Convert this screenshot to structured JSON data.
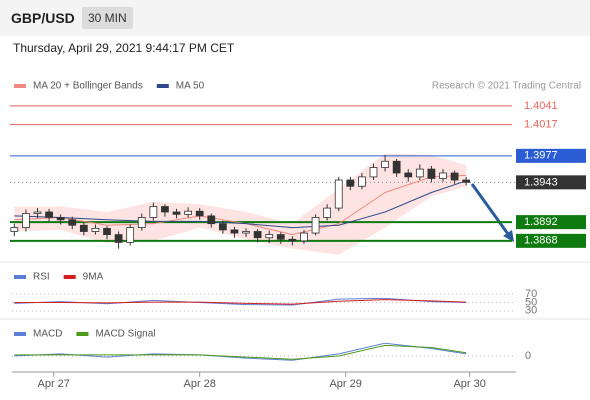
{
  "header": {
    "symbol": "GBP/USD",
    "interval": "30 MIN",
    "timestamp": "Thursday, April 29, 2021 9:44:17 PM CET"
  },
  "chart_data": [
    {
      "type": "candlestick",
      "annotation": "Research © 2021 Trading Central",
      "x": [
        0,
        1,
        2,
        3,
        4,
        5,
        6,
        7,
        8,
        9,
        10,
        11,
        12,
        13,
        14,
        15,
        16,
        17,
        18,
        19,
        20,
        21,
        22,
        23,
        24,
        25,
        26,
        27,
        28,
        29,
        30,
        31,
        32,
        33,
        34,
        35,
        36,
        37,
        38,
        39
      ],
      "open": [
        1.388,
        1.3885,
        1.3903,
        1.3905,
        1.3898,
        1.3895,
        1.3888,
        1.388,
        1.3884,
        1.3876,
        1.3866,
        1.3885,
        1.3898,
        1.3912,
        1.3905,
        1.3902,
        1.3906,
        1.39,
        1.389,
        1.3882,
        1.3878,
        1.388,
        1.3872,
        1.3876,
        1.387,
        1.3868,
        1.3878,
        1.3898,
        1.391,
        1.3946,
        1.3938,
        1.395,
        1.3962,
        1.397,
        1.3955,
        1.395,
        1.396,
        1.3948,
        1.3955,
        1.3946
      ],
      "high": [
        1.389,
        1.3908,
        1.391,
        1.3909,
        1.3902,
        1.3899,
        1.3892,
        1.3889,
        1.3887,
        1.388,
        1.3889,
        1.3903,
        1.3917,
        1.3915,
        1.3909,
        1.3911,
        1.391,
        1.3903,
        1.3894,
        1.3886,
        1.3884,
        1.3883,
        1.3881,
        1.3879,
        1.3874,
        1.3882,
        1.3902,
        1.3915,
        1.395,
        1.395,
        1.3955,
        1.3967,
        1.3978,
        1.3973,
        1.396,
        1.3966,
        1.3964,
        1.396,
        1.3958,
        1.395
      ],
      "low": [
        1.3874,
        1.388,
        1.3897,
        1.3893,
        1.3889,
        1.3883,
        1.3875,
        1.3876,
        1.387,
        1.3858,
        1.3862,
        1.3881,
        1.3894,
        1.3899,
        1.3897,
        1.3898,
        1.3895,
        1.3885,
        1.3877,
        1.3872,
        1.3873,
        1.3866,
        1.3865,
        1.3864,
        1.3862,
        1.3864,
        1.3875,
        1.3894,
        1.3906,
        1.3933,
        1.3934,
        1.3946,
        1.3957,
        1.395,
        1.3944,
        1.3946,
        1.3943,
        1.3944,
        1.3941,
        1.3939
      ],
      "close": [
        1.3885,
        1.3903,
        1.3905,
        1.3898,
        1.3895,
        1.3888,
        1.388,
        1.3884,
        1.3876,
        1.3866,
        1.3885,
        1.3898,
        1.3912,
        1.3905,
        1.3902,
        1.3906,
        1.39,
        1.389,
        1.3882,
        1.3878,
        1.388,
        1.3872,
        1.3876,
        1.387,
        1.3868,
        1.3878,
        1.3898,
        1.391,
        1.3946,
        1.3938,
        1.395,
        1.3962,
        1.397,
        1.3955,
        1.395,
        1.396,
        1.3948,
        1.3955,
        1.3946,
        1.3943
      ],
      "up_color": "#ffffff",
      "down_color": "#333333",
      "series": [
        {
          "name": "MA 20 + Bollinger Bands",
          "color": "#f08a80",
          "band_color": "#fde3e1",
          "x": [
            0,
            4,
            8,
            12,
            16,
            20,
            24,
            28,
            32,
            36,
            39
          ],
          "values": [
            1.3895,
            1.3898,
            1.3888,
            1.389,
            1.39,
            1.389,
            1.3876,
            1.389,
            1.393,
            1.395,
            1.3952
          ],
          "upper": [
            1.3912,
            1.3912,
            1.3905,
            1.3918,
            1.3915,
            1.3905,
            1.389,
            1.3935,
            1.398,
            1.3978,
            1.3965
          ],
          "lower": [
            1.388,
            1.3882,
            1.3865,
            1.3868,
            1.3885,
            1.387,
            1.3858,
            1.385,
            1.3885,
            1.3925,
            1.3938
          ]
        },
        {
          "name": "MA 50",
          "color": "#2e4a8c",
          "x": [
            0,
            4,
            8,
            12,
            16,
            20,
            24,
            28,
            32,
            36,
            39
          ],
          "values": [
            1.39,
            1.3898,
            1.3895,
            1.3893,
            1.3893,
            1.389,
            1.3885,
            1.3888,
            1.3905,
            1.393,
            1.3945
          ]
        }
      ],
      "levels": [
        {
          "value": 1.4041,
          "color": "#e8635a",
          "width": 1,
          "boxed": false,
          "dotted": false
        },
        {
          "value": 1.4017,
          "color": "#e8635a",
          "width": 1,
          "boxed": false,
          "dotted": false
        },
        {
          "value": 1.3977,
          "color": "#2a5cd6",
          "width": 1,
          "boxed": true,
          "dotted": false
        },
        {
          "value": 1.3943,
          "color": "#333333",
          "width": 1,
          "boxed": true,
          "dotted": true
        },
        {
          "value": 1.3892,
          "color": "#0f7a0f",
          "width": 2,
          "boxed": true,
          "dotted": false
        },
        {
          "value": 1.3868,
          "color": "#0f7a0f",
          "width": 2,
          "boxed": true,
          "dotted": false
        }
      ],
      "ylim": [
        1.3846,
        1.4055
      ],
      "xlim": [
        -0.2,
        43.3
      ],
      "xticks": [
        {
          "value": 3.4,
          "label": "Apr 27"
        },
        {
          "value": 16,
          "label": "Apr 28"
        },
        {
          "value": 28.6,
          "label": "Apr 29"
        },
        {
          "value": 39.3,
          "label": "Apr 30"
        }
      ]
    },
    {
      "type": "line",
      "series": [
        {
          "name": "RSI",
          "color": "#5b7fd6",
          "x": [
            0,
            4,
            8,
            12,
            16,
            20,
            24,
            28,
            32,
            36,
            39
          ],
          "values": [
            48,
            52,
            47,
            55,
            50,
            45,
            44,
            58,
            60,
            52,
            50
          ]
        },
        {
          "name": "9MA",
          "color": "#d42020",
          "x": [
            0,
            4,
            8,
            12,
            16,
            20,
            24,
            28,
            32,
            36,
            39
          ],
          "values": [
            50,
            50,
            49,
            51,
            51,
            48,
            46,
            53,
            57,
            54,
            51
          ]
        }
      ],
      "ylim": [
        20,
        80
      ],
      "yticks": [
        30,
        50,
        70
      ]
    },
    {
      "type": "line",
      "series": [
        {
          "name": "MACD",
          "color": "#5b7fd6",
          "x": [
            0,
            4,
            8,
            12,
            16,
            20,
            24,
            28,
            32,
            36,
            39
          ],
          "values": [
            0,
            0.0002,
            -0.0001,
            0.0002,
            0.0001,
            -0.0002,
            -0.0004,
            0.0002,
            0.0012,
            0.0007,
            0.0002
          ]
        },
        {
          "name": "MACD Signal",
          "color": "#4c9a1a",
          "x": [
            0,
            4,
            8,
            12,
            16,
            20,
            24,
            28,
            32,
            36,
            39
          ],
          "values": [
            0.0001,
            0.0001,
            0.0001,
            0.0001,
            0.0001,
            -0.0001,
            -0.0003,
            0,
            0.001,
            0.0008,
            0.0003
          ]
        }
      ],
      "ylim": [
        -0.0015,
        0.0015
      ],
      "yticks": [
        0
      ]
    }
  ]
}
